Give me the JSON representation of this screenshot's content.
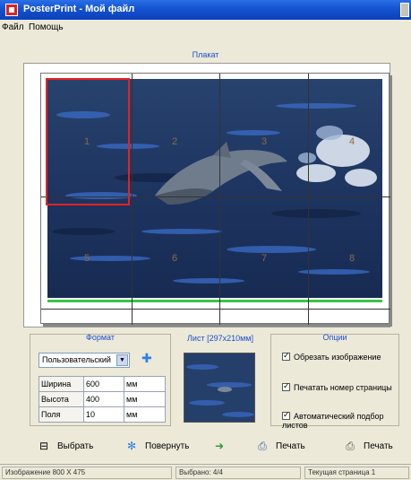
{
  "window": {
    "title": "PosterPrint - Мой файл"
  },
  "menu": {
    "items": [
      "Файл",
      "Помощь"
    ]
  },
  "preview": {
    "caption": "Плакат",
    "pages": [
      "1",
      "2",
      "3",
      "4",
      "5",
      "6",
      "7",
      "8"
    ]
  },
  "format": {
    "title": "Формат",
    "selected": "Пользовательский",
    "rows": [
      {
        "label": "Ширина",
        "value": "600",
        "unit": "мм"
      },
      {
        "label": "Высота",
        "value": "400",
        "unit": "мм"
      },
      {
        "label": "Поля",
        "value": "10",
        "unit": "мм"
      }
    ]
  },
  "page_preview": {
    "title": "Лист [297x210мм]"
  },
  "options": {
    "title": "Опции",
    "items": [
      "Обрезать изображение",
      "Печатать номер страницы",
      "Автоматический подбор листов"
    ]
  },
  "toolbar": {
    "open_label": "Выбрать",
    "rotate_label": "Повернуть",
    "setup_label": "Печать",
    "print_label": "Печать"
  },
  "status": {
    "left": "Изображение 800 X 475",
    "middle": "Выбрано: 4/4",
    "right": "Текущая страница 1"
  },
  "colors": {
    "selection": "#e42222",
    "accent": "#1d4fd1",
    "baseline": "#37c548"
  }
}
